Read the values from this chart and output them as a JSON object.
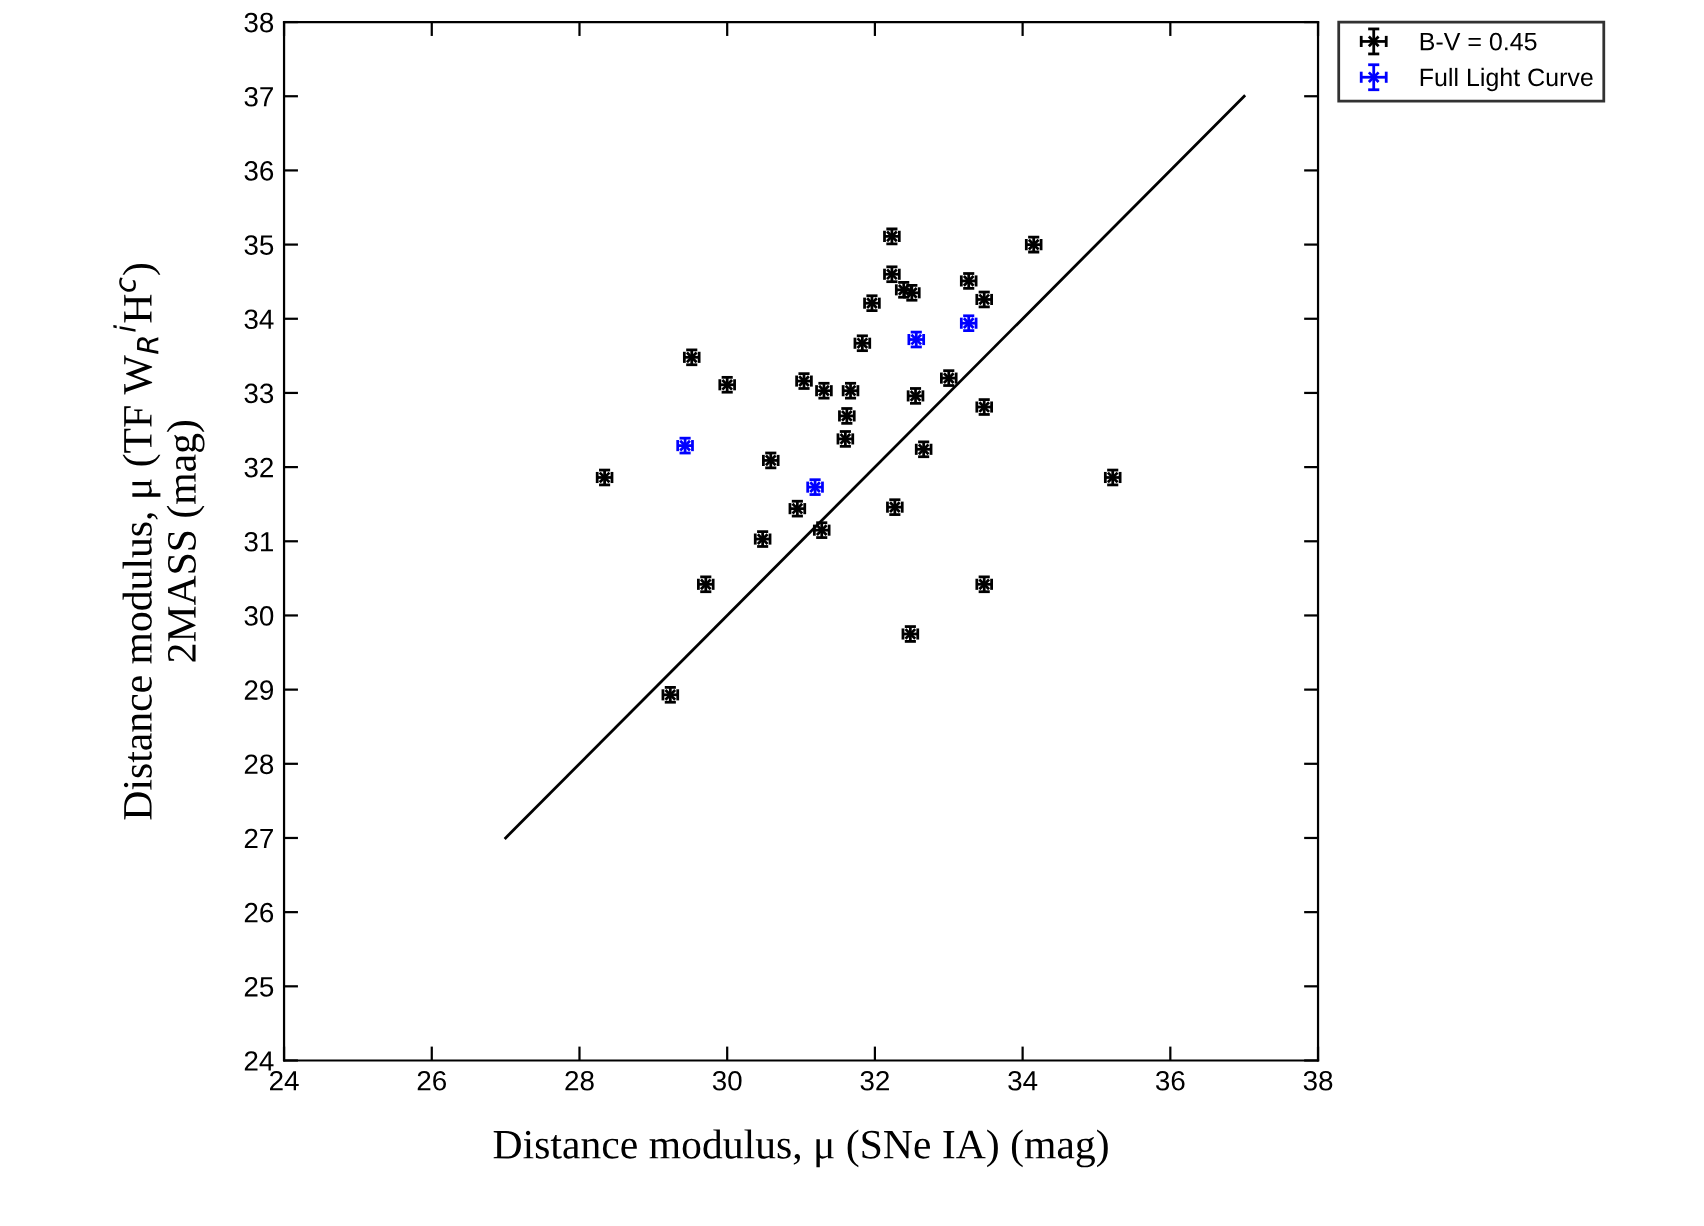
{
  "chart_data": {
    "type": "scatter",
    "xlabel": "Distance modulus, μ (SNe IA) (mag)",
    "ylabel": "Distance modulus, μ (TF W$_{R}$$^{i}$H$^{c}$)\n2MASS (mag)",
    "xlim": [
      24,
      38
    ],
    "xticks": [
      24,
      26,
      28,
      30,
      32,
      34,
      36,
      38
    ],
    "ylim": [
      24,
      38
    ],
    "yticks": [
      24,
      25,
      26,
      27,
      28,
      29,
      30,
      31,
      32,
      33,
      34,
      35,
      36,
      37,
      38
    ],
    "grid": false,
    "legend": "top right",
    "marker": "cross",
    "series": [
      {
        "name": "B-V = 0.45",
        "color": "#000000",
        "x": [
          32.23,
          34.15,
          32.23,
          32.39,
          32.5,
          33.27,
          33.48,
          31.96,
          31.83,
          29.52,
          30.0,
          31.04,
          31.31,
          31.67,
          33.0,
          32.55,
          31.62,
          33.48,
          31.6,
          32.66,
          30.59,
          28.34,
          35.22,
          30.95,
          32.27,
          30.48,
          31.28,
          29.71,
          33.48,
          32.48,
          29.23
        ],
        "values": [
          35.11,
          35.0,
          34.6,
          34.39,
          34.35,
          34.51,
          34.26,
          34.21,
          33.67,
          33.48,
          33.11,
          33.16,
          33.03,
          33.03,
          33.2,
          32.96,
          32.69,
          32.81,
          32.38,
          32.24,
          32.09,
          31.86,
          31.86,
          31.44,
          31.46,
          31.03,
          31.15,
          30.42,
          30.42,
          29.75,
          28.93
        ],
        "errors": [
          0.1,
          0.1,
          0.1,
          0.1,
          0.1,
          0.1,
          0.1,
          0.1,
          0.1,
          0.1,
          0.1,
          0.1,
          0.1,
          0.1,
          0.1,
          0.1,
          0.1,
          0.1,
          0.1,
          0.1,
          0.1,
          0.1,
          0.1,
          0.1,
          0.1,
          0.1,
          0.1,
          0.1,
          0.1,
          0.1,
          0.1
        ],
        "xerrors": [
          0.1,
          0.1,
          0.1,
          0.1,
          0.1,
          0.1,
          0.1,
          0.1,
          0.1,
          0.1,
          0.1,
          0.1,
          0.1,
          0.1,
          0.1,
          0.1,
          0.1,
          0.1,
          0.1,
          0.1,
          0.1,
          0.1,
          0.1,
          0.1,
          0.1,
          0.1,
          0.1,
          0.1,
          0.1,
          0.1,
          0.1
        ]
      },
      {
        "name": "Full Light Curve",
        "color": "#0000ff",
        "x": [
          33.27,
          32.56,
          29.43,
          31.19
        ],
        "values": [
          33.94,
          33.72,
          32.29,
          31.73
        ],
        "errors": [
          0.1,
          0.1,
          0.1,
          0.1
        ],
        "xerrors": [
          0.1,
          0.1,
          0.1,
          0.1
        ]
      },
      {
        "type": "line",
        "color": "#000000",
        "x": [
          27,
          37
        ],
        "values": [
          27,
          37
        ],
        "line_style": "solid",
        "marker": "none"
      }
    ]
  }
}
